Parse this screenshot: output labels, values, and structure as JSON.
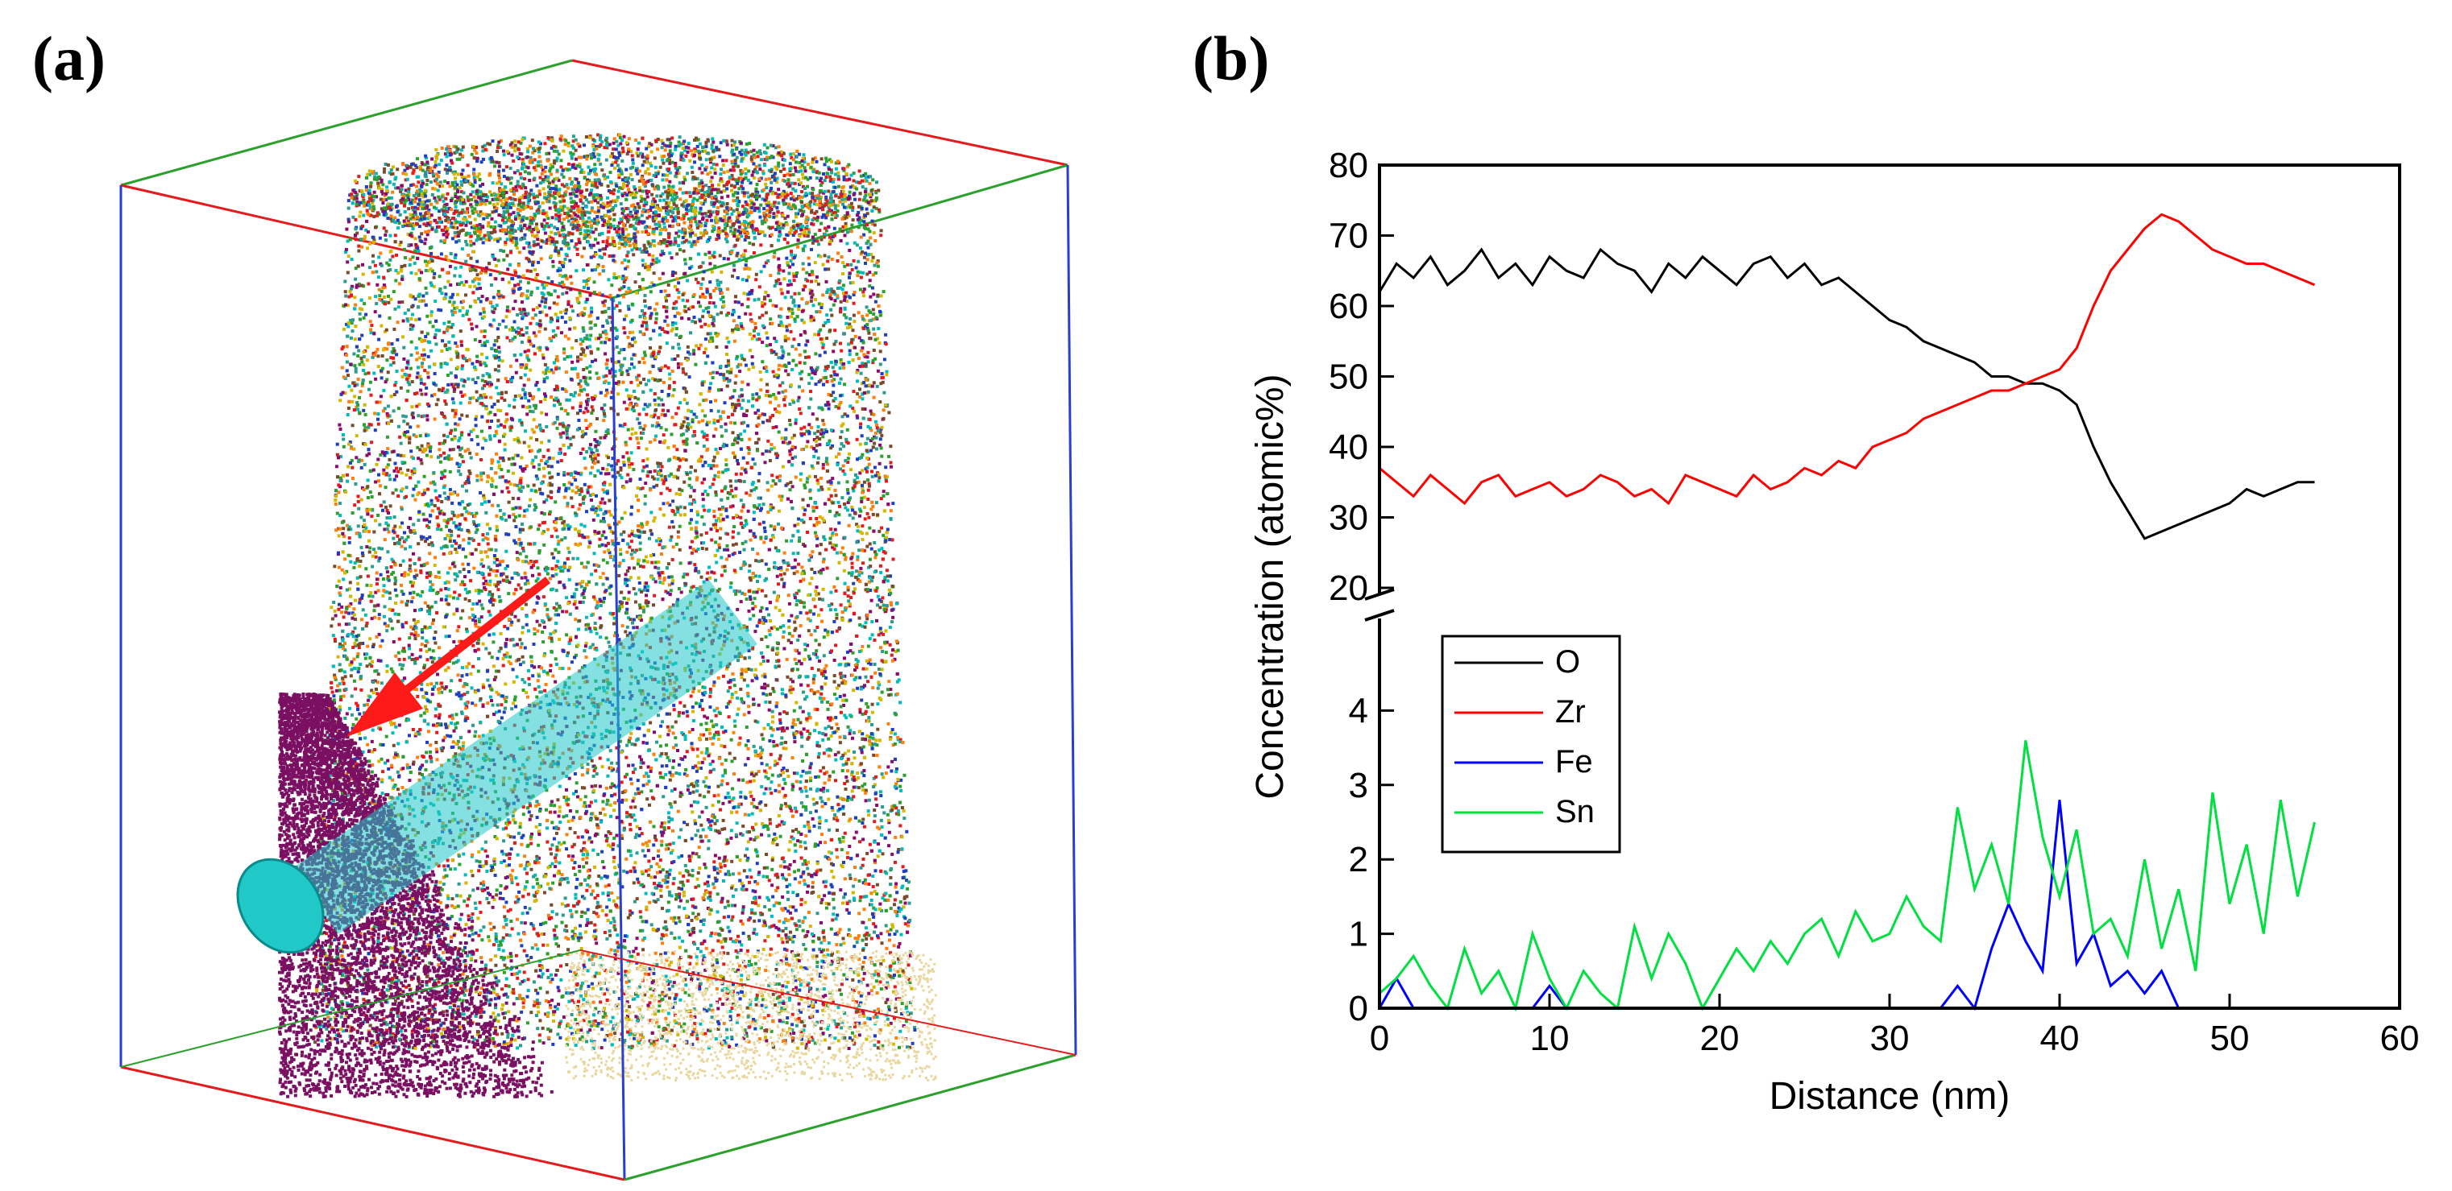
{
  "panel_a": {
    "label": "(a)",
    "point_colors": [
      "#e41a1c",
      "#2ca02c",
      "#00bcbc",
      "#ff7f0e",
      "#1f3fbf",
      "#8b0a6e",
      "#d4b800",
      "#7a4b2a",
      "#2a9d8f"
    ],
    "precipitate_color": "#20c8c8",
    "rich_region_color": "#7b0f62",
    "arrow_color": "#ff1a1a"
  },
  "panel_b": {
    "label": "(b)"
  },
  "chart_data": {
    "type": "line",
    "title": "",
    "xlabel": "Distance (nm)",
    "ylabel": "Concentration (atomic%)",
    "xlim": [
      0,
      60
    ],
    "xticks": [
      "0",
      "10",
      "20",
      "30",
      "40",
      "50",
      "60"
    ],
    "y_axis_broken": true,
    "upper_ylim": [
      20,
      80
    ],
    "upper_yticks": [
      "20",
      "30",
      "40",
      "50",
      "60",
      "70",
      "80"
    ],
    "lower_ylim": [
      0,
      5
    ],
    "lower_yticks": [
      "0",
      "1",
      "2",
      "3",
      "4"
    ],
    "legend_position": "left-middle",
    "series": [
      {
        "name": "O",
        "color": "#000000",
        "x": [
          0,
          1,
          2,
          3,
          4,
          5,
          6,
          7,
          8,
          9,
          10,
          11,
          12,
          13,
          14,
          15,
          16,
          17,
          18,
          19,
          20,
          21,
          22,
          23,
          24,
          25,
          26,
          27,
          28,
          29,
          30,
          31,
          32,
          33,
          34,
          35,
          36,
          37,
          38,
          39,
          40,
          41,
          42,
          43,
          44,
          45,
          46,
          47,
          48,
          49,
          50,
          51,
          52,
          53,
          54,
          55
        ],
        "values": [
          62,
          66,
          64,
          67,
          63,
          65,
          68,
          64,
          66,
          63,
          67,
          65,
          64,
          68,
          66,
          65,
          62,
          66,
          64,
          67,
          65,
          63,
          66,
          67,
          64,
          66,
          63,
          64,
          62,
          60,
          58,
          57,
          55,
          54,
          53,
          52,
          50,
          50,
          49,
          49,
          48,
          46,
          40,
          35,
          31,
          27,
          28,
          29,
          30,
          31,
          32,
          34,
          33,
          34,
          35,
          35
        ]
      },
      {
        "name": "Zr",
        "color": "#ff0000",
        "x": [
          0,
          1,
          2,
          3,
          4,
          5,
          6,
          7,
          8,
          9,
          10,
          11,
          12,
          13,
          14,
          15,
          16,
          17,
          18,
          19,
          20,
          21,
          22,
          23,
          24,
          25,
          26,
          27,
          28,
          29,
          30,
          31,
          32,
          33,
          34,
          35,
          36,
          37,
          38,
          39,
          40,
          41,
          42,
          43,
          44,
          45,
          46,
          47,
          48,
          49,
          50,
          51,
          52,
          53,
          54,
          55
        ],
        "values": [
          37,
          35,
          33,
          36,
          34,
          32,
          35,
          36,
          33,
          34,
          35,
          33,
          34,
          36,
          35,
          33,
          34,
          32,
          36,
          35,
          34,
          33,
          36,
          34,
          35,
          37,
          36,
          38,
          37,
          40,
          41,
          42,
          44,
          45,
          46,
          47,
          48,
          48,
          49,
          50,
          51,
          54,
          60,
          65,
          68,
          71,
          73,
          72,
          70,
          68,
          67,
          66,
          66,
          65,
          64,
          63
        ]
      },
      {
        "name": "Fe",
        "color": "#0000ff",
        "x": [
          0,
          1,
          2,
          3,
          4,
          5,
          6,
          7,
          8,
          9,
          10,
          11,
          12,
          13,
          14,
          15,
          16,
          17,
          18,
          19,
          20,
          21,
          22,
          23,
          24,
          25,
          26,
          27,
          28,
          29,
          30,
          31,
          32,
          33,
          34,
          35,
          36,
          37,
          38,
          39,
          40,
          41,
          42,
          43,
          44,
          45,
          46,
          47,
          48,
          49,
          50,
          51,
          52,
          53,
          54,
          55
        ],
        "values": [
          0,
          0.4,
          0,
          0,
          0,
          0,
          0,
          0,
          0,
          0,
          0.3,
          0,
          0,
          0,
          0,
          0,
          0,
          0,
          0,
          0,
          0,
          0,
          0,
          0,
          0,
          0,
          0,
          0,
          0,
          0,
          0,
          0,
          0,
          0,
          0.3,
          0,
          0.8,
          1.4,
          0.9,
          0.5,
          2.8,
          0.6,
          1.0,
          0.3,
          0.5,
          0.2,
          0.5,
          0,
          0,
          0,
          0,
          0,
          0,
          0,
          0,
          0
        ]
      },
      {
        "name": "Sn",
        "color": "#00e040",
        "x": [
          0,
          1,
          2,
          3,
          4,
          5,
          6,
          7,
          8,
          9,
          10,
          11,
          12,
          13,
          14,
          15,
          16,
          17,
          18,
          19,
          20,
          21,
          22,
          23,
          24,
          25,
          26,
          27,
          28,
          29,
          30,
          31,
          32,
          33,
          34,
          35,
          36,
          37,
          38,
          39,
          40,
          41,
          42,
          43,
          44,
          45,
          46,
          47,
          48,
          49,
          50,
          51,
          52,
          53,
          54,
          55
        ],
        "values": [
          0.2,
          0.4,
          0.7,
          0.3,
          0,
          0.8,
          0.2,
          0.5,
          0,
          1.0,
          0.4,
          0,
          0.5,
          0.2,
          0,
          1.1,
          0.4,
          1.0,
          0.6,
          0,
          0.4,
          0.8,
          0.5,
          0.9,
          0.6,
          1.0,
          1.2,
          0.7,
          1.3,
          0.9,
          1.0,
          1.5,
          1.1,
          0.9,
          2.7,
          1.6,
          2.2,
          1.4,
          3.6,
          2.3,
          1.5,
          2.4,
          1.0,
          1.2,
          0.7,
          2.0,
          0.8,
          1.6,
          0.5,
          2.9,
          1.4,
          2.2,
          1.0,
          2.8,
          1.5,
          2.5
        ]
      }
    ]
  }
}
